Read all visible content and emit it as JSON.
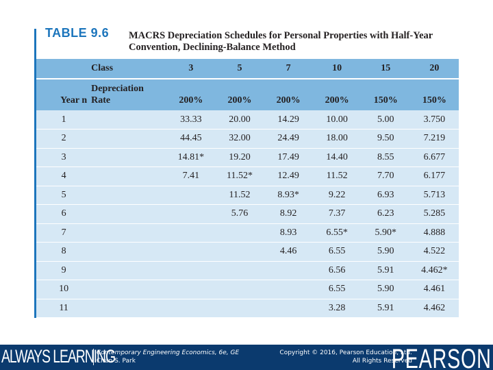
{
  "table_label": "TABLE 9.6",
  "table_title": "MACRS Depreciation Schedules for Personal Properties with Half-Year Convention, Declining-Balance Method",
  "header": {
    "class_label": "Class",
    "year_label": "Year n",
    "rate_label_line1": "Depreciation",
    "rate_label_line2": "Rate",
    "classes": [
      "3",
      "5",
      "7",
      "10",
      "15",
      "20"
    ],
    "rates": [
      "200%",
      "200%",
      "200%",
      "200%",
      "150%",
      "150%"
    ]
  },
  "rows": [
    {
      "year": "1",
      "values": [
        "33.33",
        "20.00",
        "14.29",
        "10.00",
        "5.00",
        "3.750"
      ]
    },
    {
      "year": "2",
      "values": [
        "44.45",
        "32.00",
        "24.49",
        "18.00",
        "9.50",
        "7.219"
      ]
    },
    {
      "year": "3",
      "values": [
        "14.81*",
        "19.20",
        "17.49",
        "14.40",
        "8.55",
        "6.677"
      ]
    },
    {
      "year": "4",
      "values": [
        "7.41",
        "11.52*",
        "12.49",
        "11.52",
        "7.70",
        "6.177"
      ]
    },
    {
      "year": "5",
      "values": [
        "",
        "11.52",
        "8.93*",
        "9.22",
        "6.93",
        "5.713"
      ]
    },
    {
      "year": "6",
      "values": [
        "",
        "5.76",
        "8.92",
        "7.37",
        "6.23",
        "5.285"
      ]
    },
    {
      "year": "7",
      "values": [
        "",
        "",
        "8.93",
        "6.55*",
        "5.90*",
        "4.888"
      ]
    },
    {
      "year": "8",
      "values": [
        "",
        "",
        "4.46",
        "6.55",
        "5.90",
        "4.522"
      ]
    },
    {
      "year": "9",
      "values": [
        "",
        "",
        "",
        "6.56",
        "5.91",
        "4.462*"
      ]
    },
    {
      "year": "10",
      "values": [
        "",
        "",
        "",
        "6.55",
        "5.90",
        "4.461"
      ]
    },
    {
      "year": "11",
      "values": [
        "",
        "",
        "",
        "3.28",
        "5.91",
        "4.462"
      ]
    }
  ],
  "footer": {
    "always_learning": "ALWAYS LEARNING",
    "book_line1": "Contemporary Engineering Economics, 6e, GE",
    "book_line2": "Chan S. Park",
    "copyright_line1": "Copyright © 2016, Pearson Education, Ltd.",
    "copyright_line2": "All Rights Reserved",
    "brand": "PEARSON"
  },
  "colors": {
    "header_blue": "#7fb7df",
    "row_blue": "#d6e8f5",
    "title_blue": "#1c75bc",
    "footer_navy": "#0b3a6e"
  }
}
